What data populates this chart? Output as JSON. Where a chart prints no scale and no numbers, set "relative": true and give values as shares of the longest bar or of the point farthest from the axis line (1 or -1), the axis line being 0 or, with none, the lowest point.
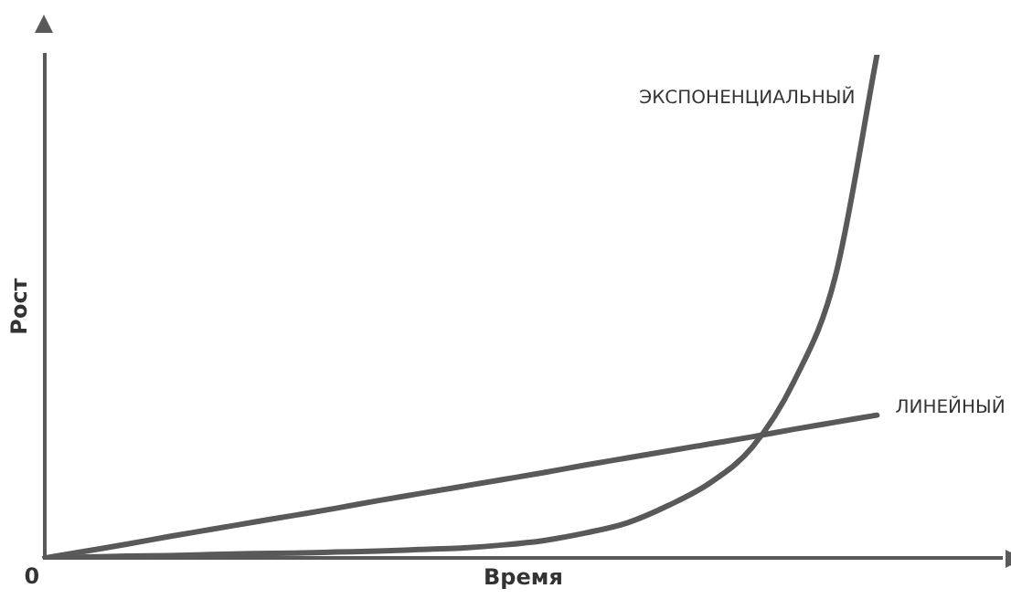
{
  "chart_data": {
    "type": "line",
    "relative": true,
    "xlabel": "Время",
    "ylabel": "Рост",
    "annotations": [
      "0"
    ],
    "categories": [
      null,
      null,
      null,
      null,
      null,
      null,
      null,
      null,
      null,
      null,
      null,
      null,
      null,
      null,
      null,
      null,
      null,
      null,
      null,
      null,
      null,
      null,
      null,
      null
    ],
    "series": [
      {
        "name": "ЭКСПОНЕНЦИАЛЬНЫЙ",
        "color": "#59595b",
        "values": [
          0,
          0.002,
          0.004,
          0.005,
          0.007,
          0.009,
          0.01,
          0.012,
          0.014,
          0.017,
          0.02,
          0.026,
          0.035,
          0.05,
          0.07,
          0.105,
          0.15,
          0.22,
          0.35,
          0.56,
          1,
          null,
          null,
          null
        ]
      },
      {
        "name": "ЛИНЕЙНЫЙ",
        "color": "#59595b",
        "values": [
          0,
          0.014,
          0.028,
          0.043,
          0.057,
          0.071,
          0.085,
          0.099,
          0.114,
          0.128,
          0.142,
          0.156,
          0.17,
          0.185,
          0.199,
          0.213,
          0.227,
          0.241,
          0.256,
          0.27,
          0.284,
          null,
          null,
          null
        ]
      }
    ],
    "legend": false,
    "grid": false,
    "marker": "none",
    "line_style": "solid"
  }
}
